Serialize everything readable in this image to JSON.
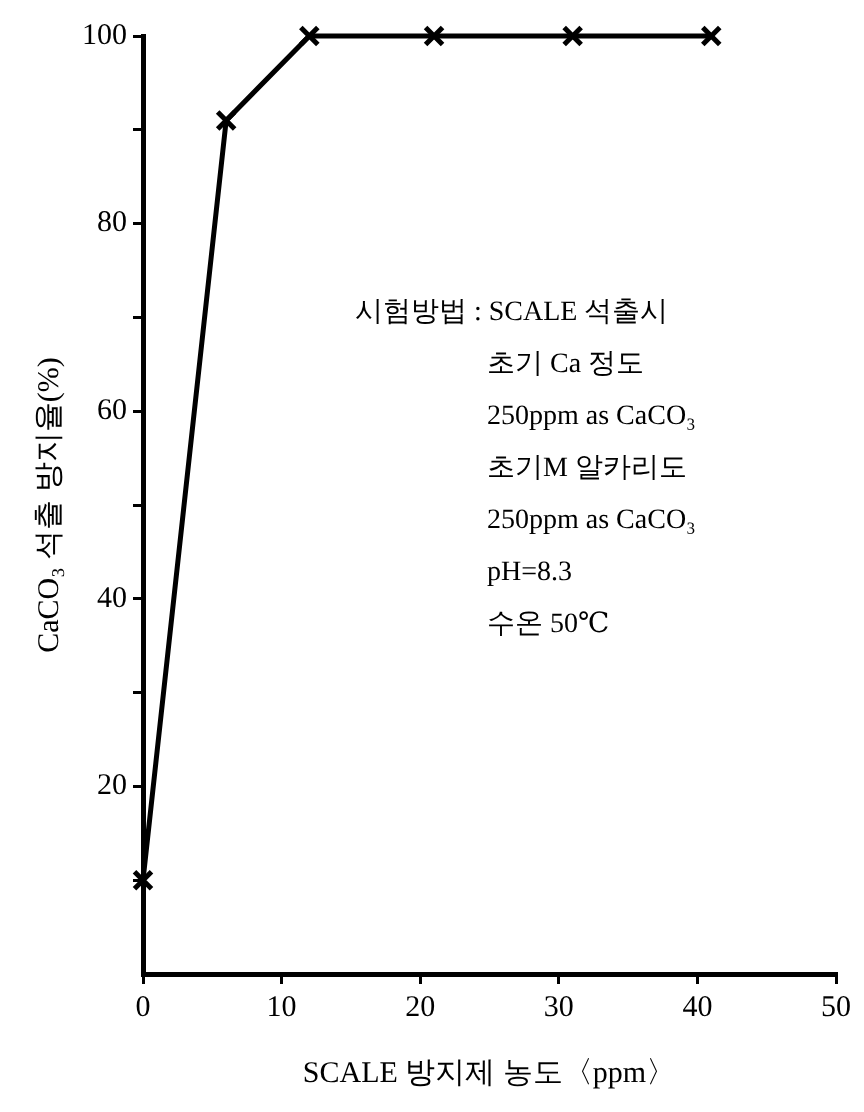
{
  "chart_data": {
    "type": "line",
    "xlabel": "SCALE 방지제 농도〈ppm〉",
    "ylabel": "CaCO₃ 석출 방지율(%)",
    "x": [
      0,
      6,
      12,
      21,
      31,
      41
    ],
    "series": [
      {
        "color": "#000000",
        "values": [
          10,
          91,
          100,
          100,
          100,
          100
        ]
      }
    ],
    "xlim": [
      0,
      50
    ],
    "xticks": [
      0,
      10,
      20,
      30,
      40,
      50
    ],
    "ylim": [
      0,
      100
    ],
    "yticks": [
      {
        "value": 10,
        "label": null
      },
      20,
      {
        "value": 30,
        "label": null
      },
      40,
      {
        "value": 50,
        "label": null
      },
      60,
      {
        "value": 70,
        "label": null
      },
      80,
      {
        "value": 90,
        "label": null
      },
      100
    ],
    "annotations": [
      "시험방법 : SCALE 석출시",
      "초기 Ca 정도",
      "250ppm as CaCO₃",
      "초기M 알카리도",
      "250ppm as CaCO₃",
      "pH=8.3",
      "수온 50℃"
    ],
    "grid": false,
    "legend": false,
    "marker": "cross",
    "line_style": "solid"
  }
}
